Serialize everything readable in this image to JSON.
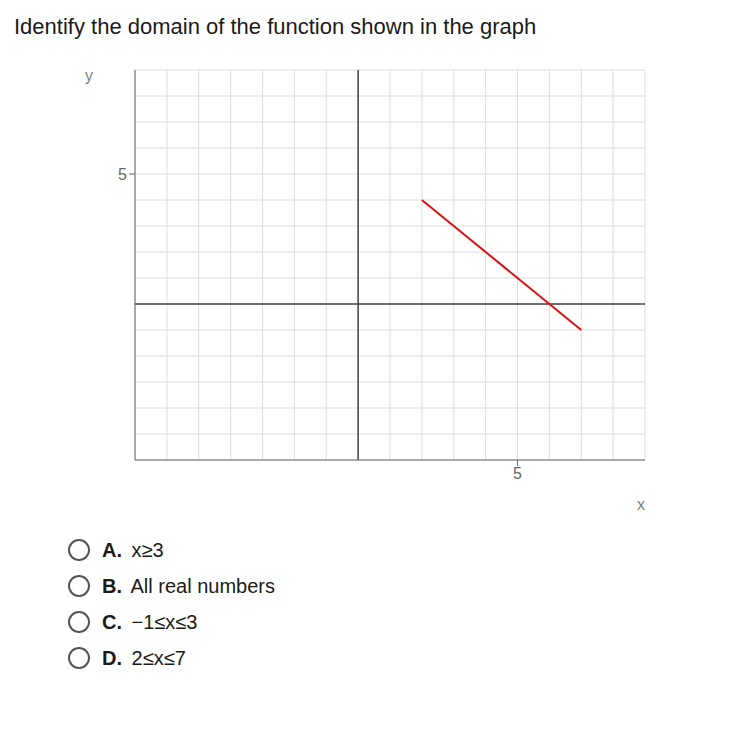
{
  "chart_data": {
    "type": "line",
    "title": "Identify the domain of the function shown in the graph",
    "x_label": "x",
    "y_label": "y",
    "x": [
      2,
      7
    ],
    "values": [
      4,
      -1
    ],
    "color": "#dd1111",
    "xlim": [
      -7,
      9
    ],
    "ylim": [
      -6,
      9
    ],
    "xticks": [
      5
    ],
    "yticks": [
      5
    ],
    "grid": true,
    "annotations": [
      {
        "label": "A.",
        "text": " x≥3"
      },
      {
        "label": "B.",
        "text": " All real numbers"
      },
      {
        "label": "C.",
        "text": " −1≤x≤3"
      },
      {
        "label": "D.",
        "text": " 2≤x≤7"
      }
    ]
  }
}
